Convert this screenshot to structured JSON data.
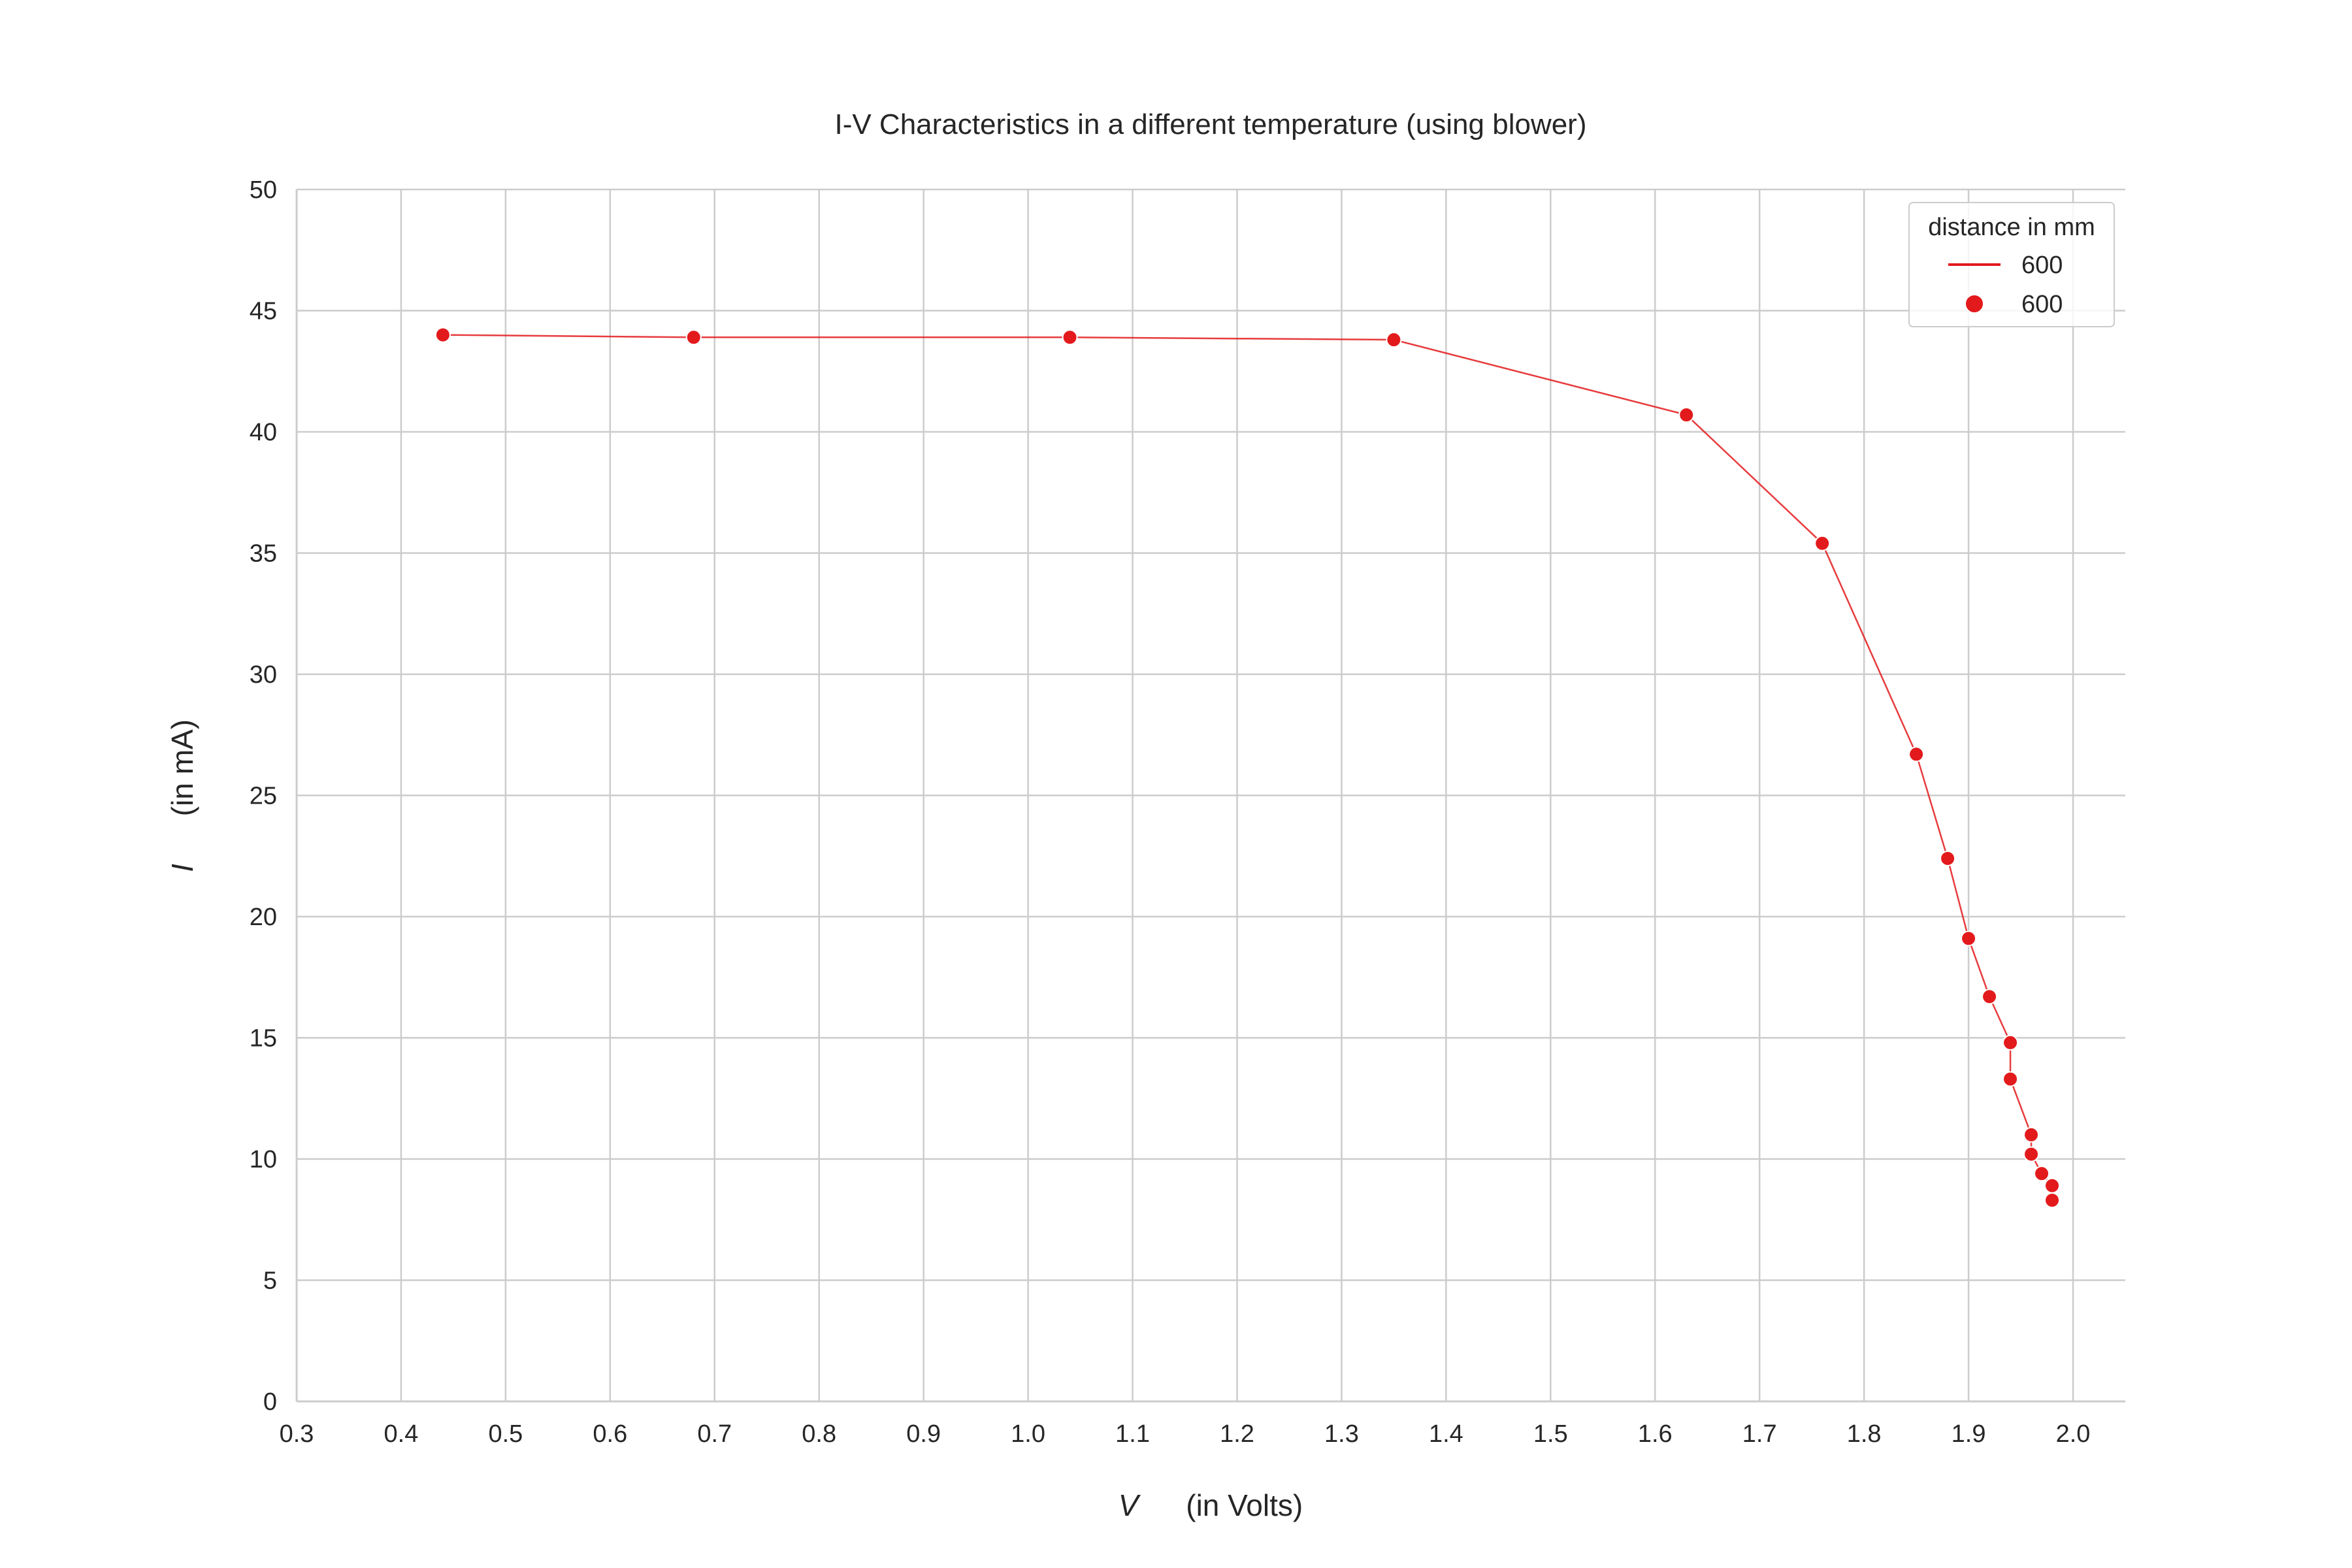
{
  "chart_data": {
    "type": "line",
    "title": "I-V Characteristics in a different temperature (using blower)",
    "xlabel": {
      "var": "V",
      "unit": "(in Volts)"
    },
    "ylabel": {
      "var": "I",
      "unit": "(in mA)"
    },
    "xlim": [
      0.3,
      2.05
    ],
    "ylim": [
      0,
      50
    ],
    "xticks": [
      0.3,
      0.4,
      0.5,
      0.6,
      0.7,
      0.8,
      0.9,
      1.0,
      1.1,
      1.2,
      1.3,
      1.4,
      1.5,
      1.6,
      1.7,
      1.8,
      1.9,
      2.0
    ],
    "yticks": [
      0,
      5,
      10,
      15,
      20,
      25,
      30,
      35,
      40,
      45,
      50
    ],
    "grid": true,
    "legend": {
      "title": "distance in mm",
      "placement": "top-right",
      "entries": [
        {
          "kind": "line",
          "label": "600"
        },
        {
          "kind": "marker",
          "label": "600"
        }
      ]
    },
    "series": [
      {
        "name": "600",
        "color": "#e31a1c",
        "x": [
          0.44,
          0.68,
          1.04,
          1.35,
          1.63,
          1.76,
          1.85,
          1.88,
          1.9,
          1.92,
          1.94,
          1.94,
          1.96,
          1.96,
          1.97,
          1.98,
          1.98
        ],
        "y": [
          44.0,
          43.9,
          43.9,
          43.8,
          40.7,
          35.4,
          26.7,
          22.4,
          19.1,
          16.7,
          14.8,
          13.3,
          11.0,
          10.2,
          9.4,
          8.9,
          8.3
        ]
      }
    ]
  }
}
